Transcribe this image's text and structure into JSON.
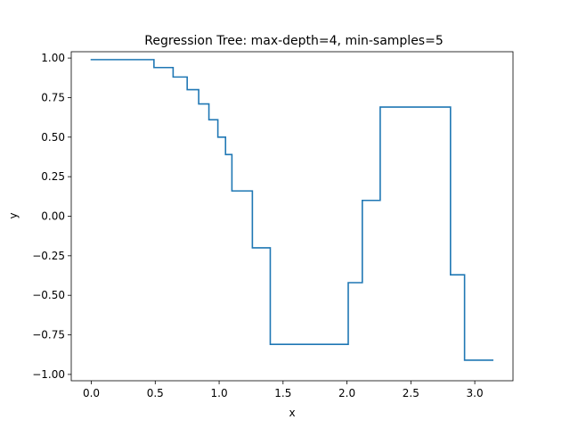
{
  "chart_data": {
    "type": "line",
    "title": "Regression Tree: max-depth=4, min-samples=5",
    "xlabel": "x",
    "ylabel": "y",
    "xlim": [
      -0.157,
      3.299
    ],
    "ylim": [
      -1.04,
      1.04
    ],
    "xticks": [
      0.0,
      0.5,
      1.0,
      1.5,
      2.0,
      2.5,
      3.0
    ],
    "xtick_labels": [
      "0.0",
      "0.5",
      "1.0",
      "1.5",
      "2.0",
      "2.5",
      "3.0"
    ],
    "yticks": [
      -1.0,
      -0.75,
      -0.5,
      -0.25,
      0.0,
      0.25,
      0.5,
      0.75,
      1.0
    ],
    "ytick_labels": [
      "−1.00",
      "−0.75",
      "−0.50",
      "−0.25",
      "0.00",
      "0.25",
      "0.50",
      "0.75",
      "1.00"
    ],
    "grid": false,
    "line_color": "#1f77b4",
    "series": [
      {
        "step": "post",
        "x": [
          0.0,
          0.49,
          0.64,
          0.75,
          0.84,
          0.92,
          0.99,
          1.05,
          1.1,
          1.26,
          1.4,
          2.01,
          2.12,
          2.26,
          2.81,
          2.92,
          3.14
        ],
        "y": [
          0.99,
          0.94,
          0.88,
          0.8,
          0.71,
          0.61,
          0.5,
          0.39,
          0.16,
          -0.2,
          -0.81,
          -0.42,
          0.1,
          0.69,
          -0.37,
          -0.91,
          -0.91
        ]
      }
    ]
  }
}
